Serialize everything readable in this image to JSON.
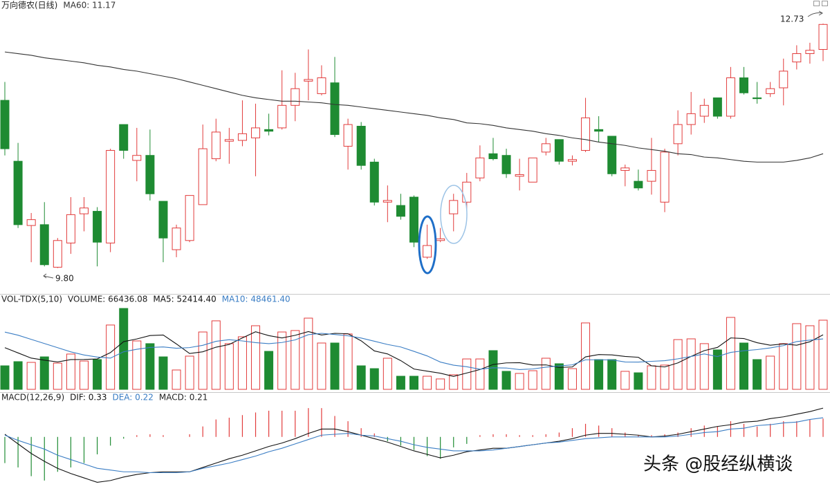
{
  "chart_data": [
    {
      "type": "candlestick",
      "title": "万向德农(日线)",
      "up_color": "#e23b3b",
      "down_color": "#1e8b32",
      "ylim": [
        9.49,
        12.88
      ],
      "open": [
        11.81,
        11.08,
        10.31,
        10.32,
        9.81,
        10.1,
        10.45,
        10.48,
        10.1,
        11.52,
        11.09,
        11.15,
        10.6,
        10.02,
        10.13,
        10.56,
        11.11,
        11.32,
        11.33,
        11.36,
        11.46,
        11.48,
        11.75,
        12.04,
        11.89,
        12.02,
        11.26,
        11.5,
        11.07,
        10.59,
        10.55,
        10.65,
        9.93,
        10.13,
        10.45,
        10.59,
        10.88,
        11.17,
        11.15,
        10.9,
        10.83,
        11.19,
        11.34,
        11.08,
        11.21,
        11.46,
        11.38,
        10.97,
        10.84,
        10.84,
        10.59,
        11.29,
        11.52,
        11.62,
        11.84,
        11.62,
        12.08,
        11.84,
        11.89,
        11.96,
        12.27,
        12.37,
        12.42
      ],
      "high": [
        12.03,
        11.3,
        10.46,
        10.59,
        10.16,
        10.65,
        10.65,
        10.53,
        11.23,
        11.52,
        11.48,
        11.46,
        10.6,
        10.32,
        10.67,
        11.52,
        11.59,
        11.48,
        11.81,
        11.77,
        11.65,
        12.17,
        12.14,
        12.42,
        12.23,
        12.33,
        11.59,
        11.55,
        11.11,
        10.79,
        10.69,
        10.67,
        10.32,
        10.28,
        10.69,
        10.94,
        11.27,
        11.36,
        11.23,
        11.11,
        11.12,
        11.36,
        11.34,
        11.15,
        11.84,
        11.62,
        11.38,
        11.04,
        10.98,
        11.36,
        11.23,
        11.69,
        11.91,
        11.83,
        11.84,
        12.21,
        12.21,
        12.03,
        12.03,
        12.31,
        12.47,
        12.5,
        12.73
      ],
      "low": [
        11.15,
        10.28,
        9.87,
        9.82,
        9.8,
        9.97,
        10.24,
        9.82,
        9.99,
        11.11,
        10.84,
        10.61,
        9.87,
        9.93,
        10.11,
        10.56,
        11.08,
        11.05,
        11.26,
        10.9,
        11.39,
        11.46,
        11.56,
        11.81,
        11.87,
        11.37,
        10.98,
        10.98,
        10.55,
        10.35,
        10.38,
        10.05,
        9.91,
        10.11,
        10.24,
        10.49,
        10.84,
        11.09,
        10.88,
        10.73,
        10.83,
        11.15,
        11.04,
        11.03,
        11.19,
        11.31,
        10.9,
        10.78,
        10.73,
        10.68,
        10.47,
        11.15,
        11.4,
        11.54,
        11.59,
        11.59,
        11.88,
        11.77,
        11.85,
        11.75,
        12.18,
        12.25,
        12.28
      ],
      "close": [
        11.23,
        10.32,
        10.38,
        9.84,
        10.13,
        10.44,
        10.52,
        10.11,
        11.21,
        11.21,
        11.15,
        10.69,
        10.16,
        10.28,
        10.67,
        11.23,
        11.43,
        11.34,
        11.41,
        11.48,
        11.44,
        11.75,
        11.95,
        12.06,
        12.08,
        11.4,
        11.52,
        11.03,
        10.59,
        10.61,
        10.42,
        10.11,
        10.07,
        10.15,
        10.61,
        10.83,
        11.12,
        11.11,
        10.93,
        10.92,
        11.12,
        11.29,
        11.08,
        11.1,
        11.6,
        11.44,
        10.93,
        11.0,
        10.76,
        10.97,
        11.19,
        11.52,
        11.65,
        11.75,
        11.62,
        12.08,
        11.9,
        11.83,
        11.95,
        12.16,
        12.37,
        12.41,
        12.72
      ],
      "series": [
        {
          "name": "MA60: 11.17",
          "color": "#333333",
          "type": "line",
          "values": [
            12.39,
            12.37,
            12.35,
            12.32,
            12.3,
            12.28,
            12.26,
            12.23,
            12.21,
            12.18,
            12.16,
            12.13,
            12.1,
            12.07,
            12.03,
            11.99,
            11.95,
            11.91,
            11.87,
            11.84,
            11.82,
            11.8,
            11.8,
            11.79,
            11.78,
            11.76,
            11.75,
            11.73,
            11.71,
            11.69,
            11.67,
            11.65,
            11.63,
            11.6,
            11.58,
            11.54,
            11.53,
            11.51,
            11.48,
            11.46,
            11.44,
            11.41,
            11.39,
            11.36,
            11.34,
            11.31,
            11.29,
            11.27,
            11.24,
            11.22,
            11.2,
            11.17,
            11.16,
            11.13,
            11.12,
            11.1,
            11.08,
            11.07,
            11.07,
            11.07,
            11.09,
            11.12,
            11.17
          ]
        }
      ],
      "annotations": [
        "12.73",
        "9.80"
      ]
    },
    {
      "type": "bar",
      "title": "VOL-TDX(5,10)",
      "color_by": "candle",
      "ylim": [
        0,
        81700
      ],
      "series": [
        {
          "name": "VOLUME: 66436.08",
          "type": "bar",
          "values": [
            22600,
            26600,
            25900,
            31200,
            25200,
            33900,
            27200,
            28600,
            61800,
            77700,
            46500,
            43900,
            31200,
            18600,
            31900,
            55100,
            65800,
            43900,
            50500,
            61100,
            36500,
            55100,
            56500,
            68400,
            44500,
            44500,
            53200,
            22600,
            19900,
            29900,
            12600,
            12600,
            12600,
            10000,
            14000,
            29200,
            29200,
            37200,
            17300,
            15300,
            17900,
            29900,
            24600,
            19900,
            63800,
            28600,
            28600,
            17300,
            15900,
            22600,
            23300,
            47800,
            48500,
            43900,
            37900,
            69100,
            44500,
            28600,
            31900,
            43900,
            63100,
            61100,
            66436.08
          ]
        },
        {
          "name": "MA5: 52414.40",
          "color": "#111111",
          "type": "line",
          "values": [
            40000,
            35000,
            30000,
            28000,
            26300,
            28600,
            28700,
            29200,
            35300,
            45800,
            48400,
            51700,
            52200,
            43600,
            34400,
            36100,
            40500,
            43100,
            49400,
            55300,
            51600,
            49400,
            51900,
            55500,
            52200,
            53800,
            53400,
            46600,
            36900,
            34000,
            27600,
            19500,
            17500,
            15500,
            12400,
            15700,
            19000,
            23900,
            25400,
            25600,
            23400,
            23500,
            21000,
            21500,
            31200,
            33400,
            33100,
            31600,
            30800,
            22600,
            21500,
            25400,
            31600,
            37200,
            40300,
            49400,
            48800,
            44800,
            42400,
            43600,
            42400,
            45700,
            52414.4
          ]
        },
        {
          "name": "MA10: 48461.40",
          "color": "#3a7dc4",
          "type": "line",
          "values": [
            55000,
            52000,
            48000,
            44000,
            40000,
            36000,
            33000,
            31000,
            30000,
            36100,
            38500,
            40200,
            40700,
            39500,
            40100,
            42300,
            46100,
            47700,
            46500,
            44900,
            43900,
            45000,
            47500,
            52500,
            53800,
            52700,
            51400,
            49300,
            46200,
            43100,
            40700,
            36500,
            32100,
            26200,
            23200,
            21700,
            19300,
            20700,
            20500,
            19000,
            19600,
            21300,
            22500,
            23500,
            28400,
            28400,
            28300,
            26300,
            26200,
            26900,
            27500,
            29300,
            31600,
            34000,
            31500,
            35500,
            37100,
            38200,
            39800,
            42000,
            45900,
            47300,
            48461.4
          ]
        }
      ]
    },
    {
      "type": "bar",
      "title": "MACD(12,26,9)",
      "color_by": "sign",
      "up_color": "#e23b3b",
      "down_color": "#1e8b32",
      "ylim": [
        -0.62,
        0.45
      ],
      "series": [
        {
          "name": "DIF: 0.33",
          "color": "#111111",
          "type": "line",
          "values": [
            0.03,
            -0.08,
            -0.19,
            -0.28,
            -0.36,
            -0.42,
            -0.47,
            -0.52,
            -0.5,
            -0.46,
            -0.43,
            -0.41,
            -0.4,
            -0.4,
            -0.4,
            -0.35,
            -0.3,
            -0.25,
            -0.21,
            -0.16,
            -0.11,
            -0.07,
            -0.02,
            0.04,
            0.09,
            0.09,
            0.06,
            0.02,
            -0.02,
            -0.06,
            -0.11,
            -0.16,
            -0.2,
            -0.24,
            -0.21,
            -0.17,
            -0.15,
            -0.13,
            -0.13,
            -0.11,
            -0.09,
            -0.07,
            -0.05,
            -0.02,
            0.02,
            0.04,
            0.04,
            0.03,
            0.02,
            0,
            0.01,
            0.03,
            0.06,
            0.09,
            0.12,
            0.14,
            0.17,
            0.18,
            0.21,
            0.23,
            0.26,
            0.29,
            0.33
          ]
        },
        {
          "name": "DEA: 0.22",
          "color": "#3a7dc4",
          "type": "line",
          "values": [
            0.02,
            -0.04,
            -0.09,
            -0.14,
            -0.21,
            -0.26,
            -0.31,
            -0.36,
            -0.38,
            -0.4,
            -0.4,
            -0.41,
            -0.41,
            -0.41,
            -0.4,
            -0.36,
            -0.33,
            -0.3,
            -0.26,
            -0.22,
            -0.17,
            -0.13,
            -0.08,
            -0.03,
            0.02,
            0.03,
            0.04,
            0.02,
            0.01,
            -0.02,
            -0.05,
            -0.09,
            -0.12,
            -0.14,
            -0.16,
            -0.16,
            -0.16,
            -0.15,
            -0.13,
            -0.11,
            -0.09,
            -0.07,
            -0.06,
            -0.04,
            -0.02,
            -0.01,
            0,
            0,
            0,
            0,
            0,
            0.01,
            0.03,
            0.05,
            0.06,
            0.09,
            0.1,
            0.13,
            0.14,
            0.16,
            0.17,
            0.2,
            0.22
          ]
        },
        {
          "name": "MACD: 0.21",
          "type": "bar",
          "values": [
            -0.3,
            -0.35,
            -0.45,
            -0.5,
            -0.4,
            -0.35,
            -0.3,
            -0.2,
            -0.1,
            -0.02,
            0.02,
            0.03,
            0.02,
            0,
            0.03,
            0.12,
            0.2,
            0.22,
            0.25,
            0.28,
            0.3,
            0.3,
            0.3,
            0.33,
            0.33,
            0.24,
            0.18,
            0.1,
            0.04,
            -0.05,
            -0.1,
            -0.15,
            -0.22,
            -0.25,
            -0.12,
            -0.08,
            0.02,
            0.03,
            0.03,
            0.02,
            0.02,
            0.03,
            0.05,
            0.1,
            0.15,
            0.13,
            0.1,
            0.05,
            0.02,
            0.02,
            0.03,
            0.05,
            0.1,
            0.13,
            0.12,
            0.18,
            0.15,
            0.12,
            0.15,
            0.18,
            0.18,
            0.2,
            0.21
          ]
        }
      ]
    }
  ],
  "watermark": "头条 @股经纵横谈"
}
